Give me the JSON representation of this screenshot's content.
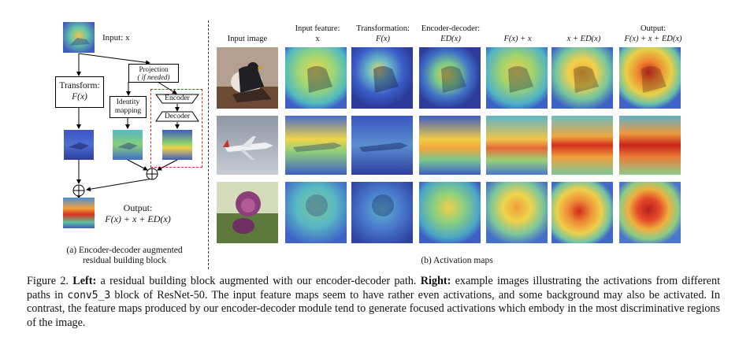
{
  "left": {
    "input_label": "Input: x",
    "projection_line1": "Projection",
    "projection_line2": "( if needed)",
    "transform_line1": "Transform:",
    "transform_line2": "F(x)",
    "identity_line1": "Identity",
    "identity_line2": "mapping",
    "encoder_label": "Encoder",
    "decoder_label": "Decoder",
    "output_line1": "Output:",
    "output_line2": "F(x) + x + ED(x)",
    "caption_line1": "(a) Encoder-decoder augmented",
    "caption_line2": "residual building block"
  },
  "right": {
    "columns": [
      {
        "line1": "Input image",
        "line2": ""
      },
      {
        "line1": "Input feature:",
        "line2": "x"
      },
      {
        "line1": "Transformation:",
        "line2": "F(x)"
      },
      {
        "line1": "Encoder-decoder:",
        "line2": "ED(x)"
      },
      {
        "line1": "",
        "line2": "F(x) + x"
      },
      {
        "line1": "",
        "line2": "x + ED(x)"
      },
      {
        "line1": "Output:",
        "line2": "F(x) + x + ED(x)"
      }
    ],
    "caption": "(b) Activation maps"
  },
  "figure_caption": {
    "prefix": "Figure 2. ",
    "left_bold": "Left:",
    "part1": " a residual building block augmented with our encoder-decoder path. ",
    "right_bold": "Right:",
    "part2": " example images illustrating the activations from different paths in ",
    "code": "conv5_3",
    "part3": " block of ResNet-50. The input feature maps seem to have rather even activations, and some background may also be activated. In contrast, the feature maps produced by our encoder-decoder module tend to generate focused activations which embody in the most discriminative regions of the image."
  },
  "colors": {
    "dashed_box": "#e0241b",
    "heat_low": "#2a3fb0",
    "heat_mid": "#3fbfa8",
    "heat_high": "#e23a1e"
  }
}
